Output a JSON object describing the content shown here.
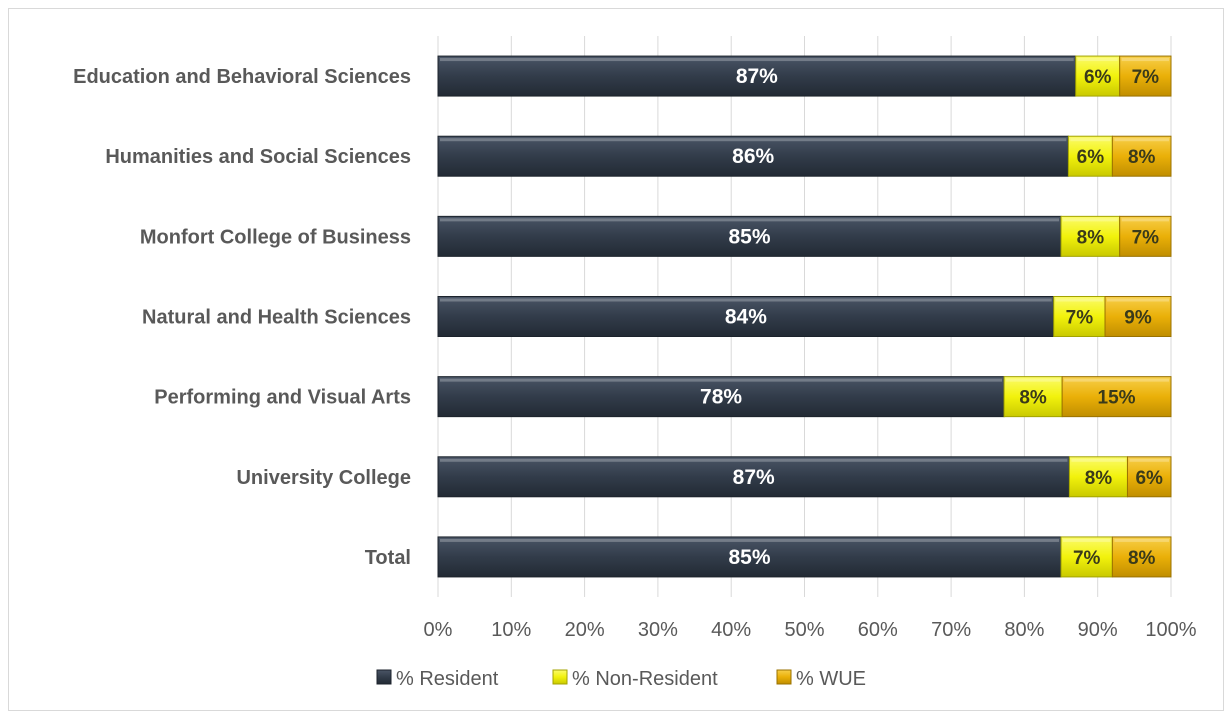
{
  "chart_data": {
    "type": "bar",
    "orientation": "horizontal",
    "stacked": "percent",
    "title": "",
    "xlabel": "",
    "ylabel": "",
    "categories": [
      "Education and Behavioral Sciences",
      "Humanities and Social Sciences",
      "Monfort College of Business",
      "Natural and Health Sciences",
      "Performing and Visual Arts",
      "University College",
      "Total"
    ],
    "series": [
      {
        "name": "% Resident",
        "color": "#323c4a",
        "values": [
          87,
          86,
          85,
          84,
          78,
          87,
          85
        ],
        "labels": [
          "87%",
          "86%",
          "85%",
          "84%",
          "78%",
          "87%",
          "85%"
        ]
      },
      {
        "name": "% Non-Resident",
        "color": "#f2f20c",
        "values": [
          6,
          6,
          8,
          7,
          8,
          8,
          7
        ],
        "labels": [
          "6%",
          "6%",
          "8%",
          "7%",
          "8%",
          "8%",
          "7%"
        ]
      },
      {
        "name": "% WUE",
        "color": "#eab008",
        "values": [
          7,
          8,
          7,
          9,
          15,
          6,
          8
        ],
        "labels": [
          "7%",
          "8%",
          "7%",
          "9%",
          "15%",
          "6%",
          "8%"
        ]
      }
    ],
    "xlim": [
      0,
      100
    ],
    "x_ticks": [
      "0%",
      "10%",
      "20%",
      "30%",
      "40%",
      "50%",
      "60%",
      "70%",
      "80%",
      "90%",
      "100%"
    ],
    "grid": "vertical",
    "legend": "bottom"
  }
}
